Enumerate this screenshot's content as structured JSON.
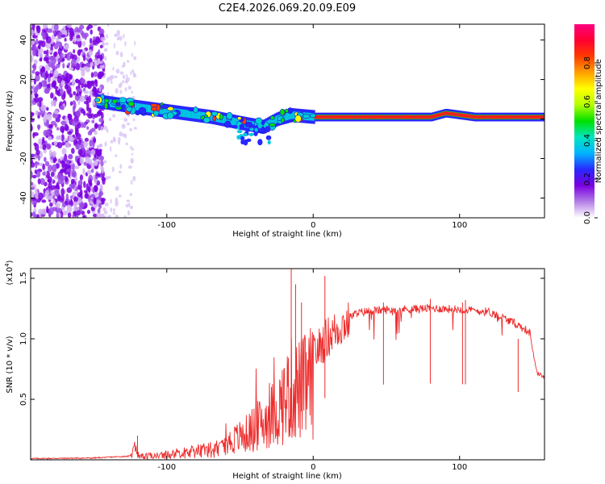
{
  "title": "C2E4.2026.069.20.09.E09",
  "chart_data": [
    {
      "type": "heatmap",
      "name": "spectrogram",
      "xlabel": "Height of straight line (km)",
      "ylabel": "Frequency (Hz)",
      "xlim": [
        -193,
        158
      ],
      "ylim": [
        -50,
        48
      ],
      "x_ticks": [
        -100,
        0,
        100
      ],
      "x_tick_labels": [
        "-100",
        "0",
        "100"
      ],
      "y_ticks": [
        -40,
        -20,
        0,
        20,
        40
      ],
      "y_tick_labels": [
        "-40",
        "-20",
        "0",
        "20",
        "40"
      ],
      "colorbar": {
        "label": "Normalized spectral amplitude",
        "range": [
          0,
          1
        ],
        "ticks": [
          0,
          0.2,
          0.4,
          0.6,
          0.8
        ],
        "tick_labels": [
          "0.0",
          "0.2",
          "0.4",
          "0.6",
          "0.8"
        ],
        "colormap": [
          "#ffffff",
          "#b37fe6",
          "#7a00e0",
          "#2828ff",
          "#00b4ff",
          "#00e5c0",
          "#00e000",
          "#b4ff00",
          "#ffff00",
          "#ffa000",
          "#ff3c00",
          "#ff0030",
          "#ff007f"
        ]
      },
      "ridge": {
        "x": [
          -148,
          -130,
          -110,
          -90,
          -70,
          -50,
          -35,
          -25,
          -15,
          0,
          20,
          50,
          80,
          90,
          110,
          158
        ],
        "freq": [
          9,
          7,
          5,
          3,
          1,
          -2,
          -4,
          0,
          2,
          1,
          1,
          1,
          1,
          3,
          1,
          1
        ]
      }
    },
    {
      "type": "line",
      "name": "snr",
      "xlabel": "Height of straight line (km)",
      "ylabel": "SNR (10 * v/v)",
      "scale_label": "(x10",
      "scale_exp": "4",
      "scale_suffix": ")",
      "xlim": [
        -193,
        158
      ],
      "ylim": [
        0,
        1.58
      ],
      "x_ticks": [
        -100,
        0,
        100
      ],
      "x_tick_labels": [
        "-100",
        "0",
        "100"
      ],
      "y_ticks": [
        0.5,
        1.0,
        1.5
      ],
      "y_tick_labels": [
        "0.5",
        "1.0",
        "1.5"
      ],
      "color": "#ee2b2b",
      "envelope": {
        "x": [
          -193,
          -150,
          -125,
          -122,
          -119,
          -100,
          -80,
          -60,
          -45,
          -35,
          -25,
          -15,
          -8,
          0,
          10,
          20,
          30,
          40,
          60,
          80,
          100,
          120,
          130,
          140,
          148,
          150,
          153,
          158
        ],
        "y": [
          0.01,
          0.015,
          0.03,
          0.17,
          0.05,
          0.08,
          0.12,
          0.18,
          0.3,
          0.42,
          0.55,
          0.8,
          0.8,
          0.9,
          1.05,
          1.15,
          1.22,
          1.24,
          1.25,
          1.26,
          1.25,
          1.23,
          1.18,
          1.12,
          1.06,
          0.9,
          0.72,
          0.68
        ]
      },
      "spikes": {
        "x": [
          -120,
          -15,
          -12,
          -8,
          8,
          48,
          80,
          102,
          104,
          140
        ],
        "y": [
          0.2,
          1.58,
          1.45,
          1.3,
          1.52,
          1.3,
          1.33,
          1.3,
          1.32,
          1.0
        ]
      }
    }
  ]
}
